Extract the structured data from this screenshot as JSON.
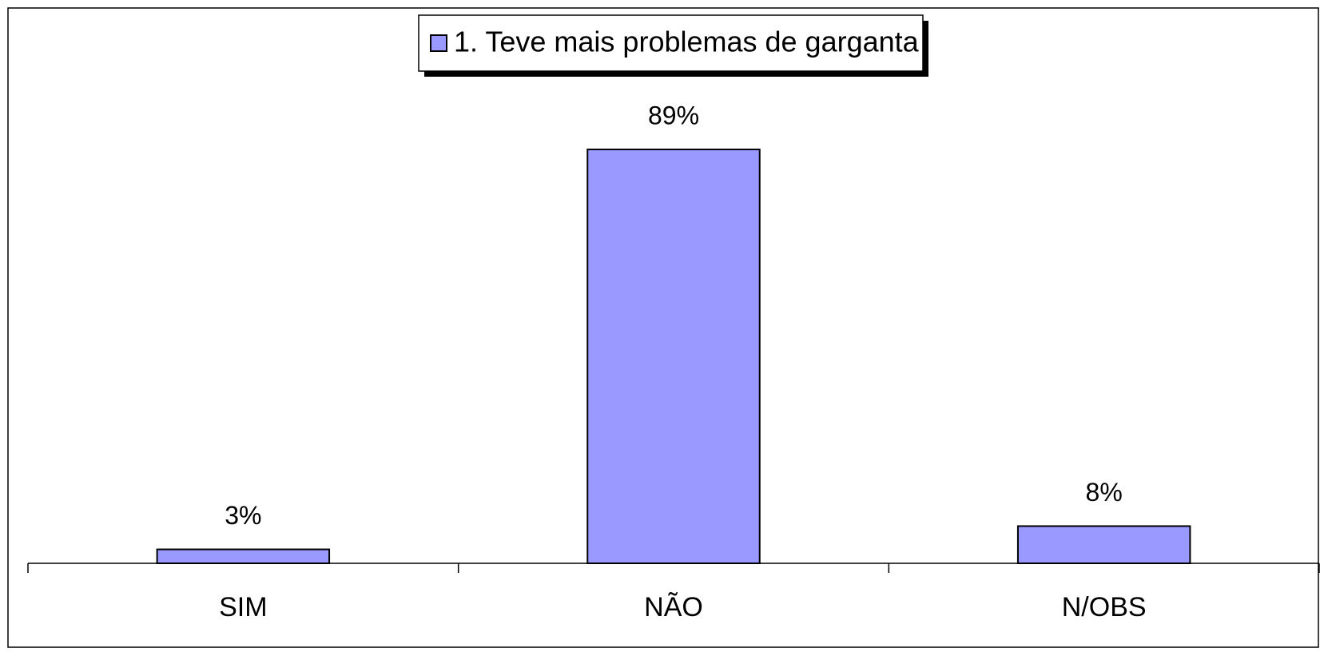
{
  "chart_data": {
    "type": "bar",
    "categories": [
      "SIM",
      "NÃO",
      "N/OBS"
    ],
    "series": [
      {
        "name": "1. Teve mais problemas de garganta",
        "color": "#9999ff",
        "values": [
          3,
          89,
          8
        ],
        "value_labels": [
          "3%",
          "89%",
          "8%"
        ]
      }
    ],
    "ylim": [
      0,
      100
    ],
    "legend": "top"
  }
}
